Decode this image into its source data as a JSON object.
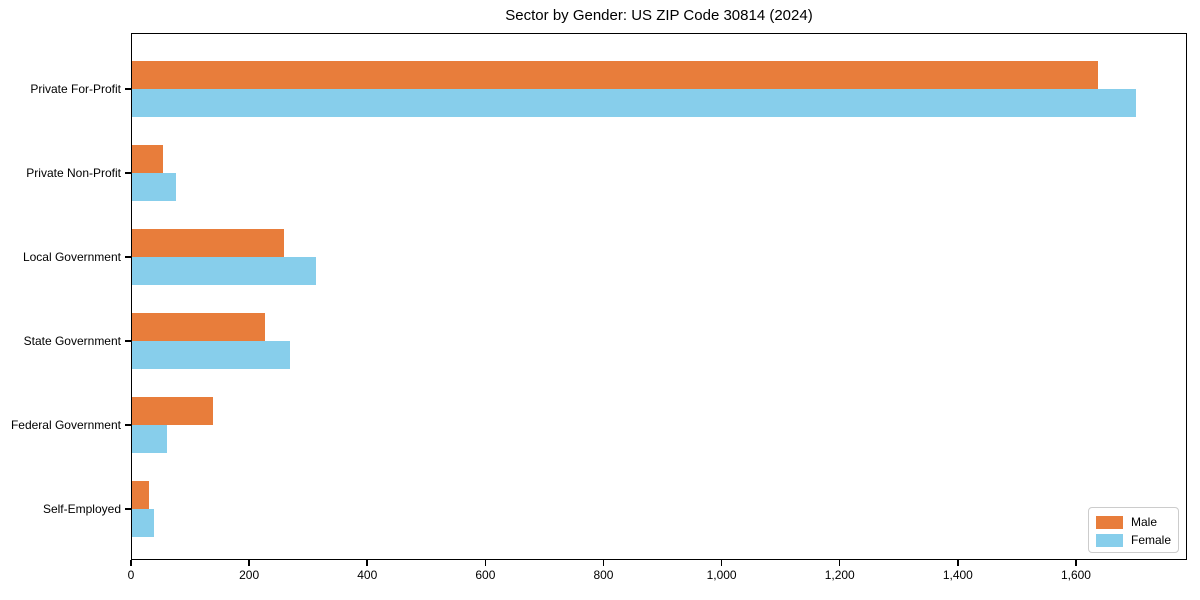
{
  "chart_data": {
    "type": "bar",
    "orientation": "horizontal",
    "title": "Sector by Gender: US ZIP Code 30814 (2024)",
    "categories": [
      "Private For-Profit",
      "Private Non-Profit",
      "Local Government",
      "State Government",
      "Federal Government",
      "Self-Employed"
    ],
    "series": [
      {
        "name": "Male",
        "color": "#e87d3b",
        "values": [
          1639,
          53,
          258,
          226,
          137,
          28
        ]
      },
      {
        "name": "Female",
        "color": "#87ceeb",
        "values": [
          1703,
          75,
          312,
          268,
          59,
          37
        ]
      }
    ],
    "xlabel": "",
    "ylabel": "",
    "xlim": [
      0,
      1788
    ],
    "xticks": [
      0,
      200,
      400,
      600,
      800,
      1000,
      1200,
      1400,
      1600
    ],
    "xtick_labels": [
      "0",
      "200",
      "400",
      "600",
      "800",
      "1,000",
      "1,200",
      "1,400",
      "1,600"
    ],
    "grid": false,
    "legend": {
      "position": "lower right"
    }
  }
}
